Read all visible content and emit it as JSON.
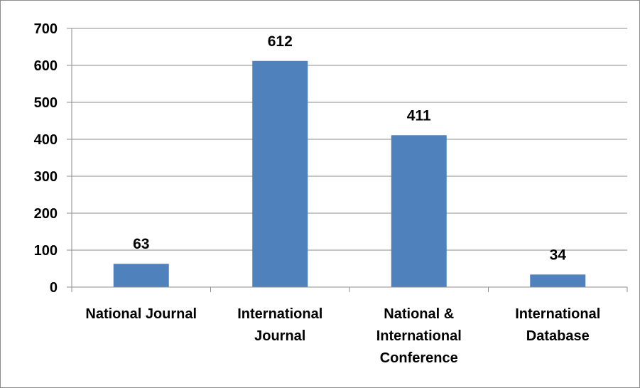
{
  "chart_data": {
    "type": "bar",
    "title": "",
    "xlabel": "",
    "ylabel": "",
    "categories": [
      [
        "National Journal"
      ],
      [
        "International",
        "Journal"
      ],
      [
        "National &",
        "International",
        "Conference"
      ],
      [
        "International",
        "Database"
      ]
    ],
    "values": [
      63,
      612,
      411,
      34
    ],
    "data_labels": [
      "63",
      "612",
      "411",
      "34"
    ],
    "ylim": [
      0,
      700
    ],
    "yticks": [
      0,
      100,
      200,
      300,
      400,
      500,
      600,
      700
    ],
    "ytick_labels": [
      "0",
      "100",
      "200",
      "300",
      "400",
      "500",
      "600",
      "700"
    ],
    "grid": true,
    "legend": "none",
    "bar_color": "#4f81bd",
    "grid_color": "#8c8c8c"
  }
}
